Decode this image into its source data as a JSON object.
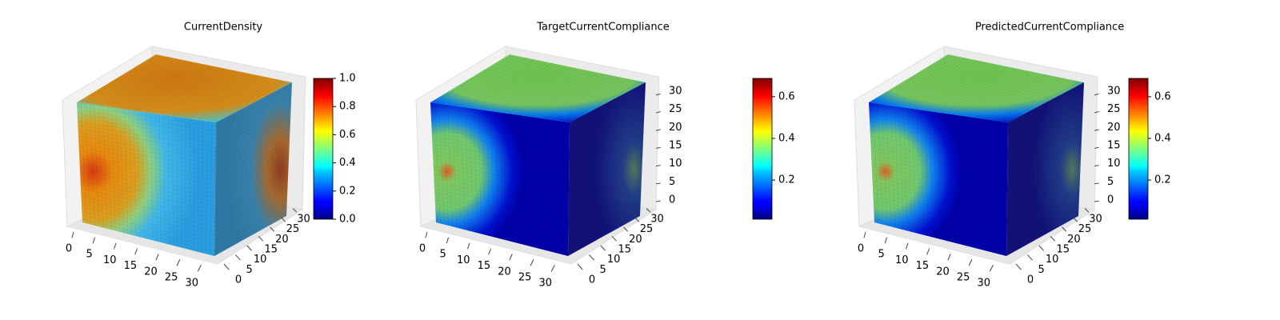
{
  "chart_data": [
    {
      "type": "voxel",
      "title": "CurrentDensity",
      "colormap": "jet",
      "xlim": [
        0,
        32
      ],
      "xticks": [
        0,
        5,
        10,
        15,
        20,
        25,
        30
      ],
      "ylim": [
        0,
        32
      ],
      "yticks": [
        0,
        5,
        10,
        15,
        20,
        25,
        30
      ],
      "clim": [
        0,
        1
      ],
      "cticks": [
        {
          "value": 0,
          "label": "0.0"
        },
        0.2,
        0.4,
        0.6,
        0.8,
        {
          "value": 1,
          "label": "1.0"
        }
      ]
    },
    {
      "type": "voxel",
      "title": "TargetCurrentCompliance",
      "colormap": "jet",
      "xlim": [
        0,
        32
      ],
      "xticks": [
        0,
        5,
        10,
        15,
        20,
        25,
        30
      ],
      "ylim": [
        0,
        32
      ],
      "yticks": [
        0,
        5,
        10,
        15,
        20,
        25,
        30
      ],
      "zlim": [
        0,
        32
      ],
      "zticks": [
        0,
        5,
        10,
        15,
        20,
        25,
        30
      ],
      "clim": [
        0.012,
        0.688
      ],
      "cticks": [
        0.2,
        0.4,
        0.6
      ]
    },
    {
      "type": "voxel",
      "title": "PredictedCurrentCompliance",
      "colormap": "jet",
      "xlim": [
        0,
        32
      ],
      "xticks": [
        0,
        5,
        10,
        15,
        20,
        25,
        30
      ],
      "ylim": [
        0,
        32
      ],
      "yticks": [
        0,
        5,
        10,
        15,
        20,
        25,
        30
      ],
      "zlim": [
        0,
        32
      ],
      "zticks": [
        0,
        5,
        10,
        15,
        20,
        25,
        30
      ],
      "clim": [
        0.012,
        0.688
      ],
      "cticks": [
        0.2,
        0.4,
        0.6
      ]
    }
  ]
}
